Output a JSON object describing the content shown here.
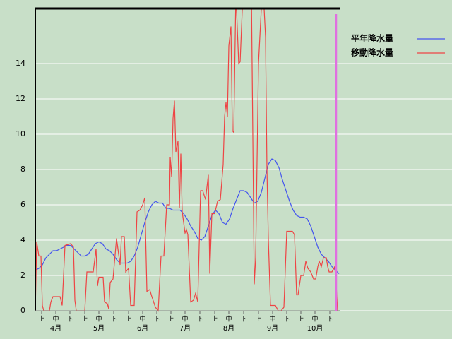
{
  "chart_data": {
    "type": "line",
    "xlim": [
      0,
      216
    ],
    "ylim": [
      0,
      17.12
    ],
    "yticks": [
      0,
      2,
      4,
      6,
      8,
      10,
      12,
      14
    ],
    "grid": true,
    "xticks": [
      {
        "value": 4.5,
        "label": "上"
      },
      {
        "value": 14.5,
        "label": "中"
      },
      {
        "value": 24.5,
        "label": "下"
      },
      {
        "value": 35,
        "label": "上"
      },
      {
        "value": 45,
        "label": "中"
      },
      {
        "value": 55.5,
        "label": "下"
      },
      {
        "value": 66,
        "label": "上"
      },
      {
        "value": 76,
        "label": "中"
      },
      {
        "value": 86,
        "label": "下"
      },
      {
        "value": 96,
        "label": "上"
      },
      {
        "value": 106,
        "label": "中"
      },
      {
        "value": 116.5,
        "label": "下"
      },
      {
        "value": 127,
        "label": "上"
      },
      {
        "value": 137,
        "label": "中"
      },
      {
        "value": 147.5,
        "label": "下"
      },
      {
        "value": 158,
        "label": "上"
      },
      {
        "value": 168,
        "label": "中"
      },
      {
        "value": 178,
        "label": "下"
      },
      {
        "value": 188,
        "label": "上"
      },
      {
        "value": 198,
        "label": "中"
      },
      {
        "value": 208.5,
        "label": "下"
      }
    ],
    "month_labels": [
      {
        "value": 14.5,
        "label": "4月"
      },
      {
        "value": 45,
        "label": "5月"
      },
      {
        "value": 76,
        "label": "6月"
      },
      {
        "value": 106,
        "label": "7月"
      },
      {
        "value": 137,
        "label": "8月"
      },
      {
        "value": 168,
        "label": "9月"
      },
      {
        "value": 198,
        "label": "10月"
      }
    ],
    "marker_x": 213,
    "marker_color": "#e070e0",
    "legend": "right",
    "series": [
      {
        "name": "平年降水量",
        "color": "#4455ee",
        "x": [
          0,
          2.5,
          5,
          7.5,
          10,
          12.5,
          15,
          17.5,
          20,
          22.5,
          25,
          27.5,
          30,
          32.5,
          35,
          37.5,
          40,
          42.5,
          45,
          47.5,
          50,
          52.5,
          55,
          57.5,
          60,
          62.5,
          65,
          67.5,
          70,
          72.5,
          75,
          77.5,
          80,
          82.5,
          85,
          87.5,
          90,
          92.5,
          95,
          97.5,
          100,
          102.5,
          105,
          107.5,
          110,
          112.5,
          115,
          117.5,
          120,
          122.5,
          125,
          127.5,
          130,
          132.5,
          135,
          137.5,
          140,
          142.5,
          145,
          147.5,
          150,
          152.5,
          155,
          157.5,
          160,
          162.5,
          165,
          167.5,
          170,
          172.5,
          175,
          177.5,
          180,
          182.5,
          185,
          187.5,
          190,
          192.5,
          195,
          197.5,
          200,
          202.5,
          205,
          207.5,
          210,
          212.5,
          215
        ],
        "values": [
          2.3,
          2.4,
          2.6,
          3.0,
          3.2,
          3.4,
          3.4,
          3.5,
          3.6,
          3.7,
          3.7,
          3.5,
          3.3,
          3.1,
          3.1,
          3.2,
          3.5,
          3.8,
          3.9,
          3.8,
          3.5,
          3.4,
          3.2,
          2.9,
          2.7,
          2.7,
          2.7,
          2.8,
          3.1,
          3.6,
          4.3,
          5.0,
          5.6,
          6.0,
          6.2,
          6.1,
          6.1,
          5.8,
          5.8,
          5.7,
          5.7,
          5.7,
          5.5,
          5.2,
          4.8,
          4.5,
          4.1,
          4.0,
          4.2,
          4.8,
          5.4,
          5.7,
          5.5,
          5.0,
          4.9,
          5.2,
          5.8,
          6.3,
          6.8,
          6.8,
          6.7,
          6.4,
          6.1,
          6.2,
          6.7,
          7.5,
          8.3,
          8.6,
          8.5,
          8.1,
          7.4,
          6.8,
          6.2,
          5.7,
          5.4,
          5.3,
          5.3,
          5.2,
          4.8,
          4.2,
          3.6,
          3.2,
          3.0,
          2.8,
          2.5,
          2.3,
          2.1
        ]
      },
      {
        "name": "移動降水量",
        "color": "#ee4444",
        "x": [
          0,
          1,
          2.5,
          4,
          5,
          6,
          10,
          11,
          12.5,
          17.5,
          19,
          21,
          25,
          27,
          28,
          29,
          35,
          36.5,
          41,
          43,
          44,
          45,
          48,
          49,
          51,
          52,
          53,
          55,
          57.5,
          60,
          61,
          63,
          64,
          66,
          67.5,
          70,
          72,
          74,
          76,
          77.5,
          79,
          81,
          82.5,
          85,
          87,
          89,
          91,
          93,
          95,
          95.5,
          96.5,
          97.5,
          98.5,
          99.5,
          101,
          102,
          103,
          104,
          106,
          107,
          108,
          110,
          112,
          113.5,
          115,
          117,
          118.5,
          120.5,
          122.5,
          123.5,
          125,
          127,
          129,
          131,
          133,
          134,
          135,
          136,
          137,
          138.5,
          139.5,
          140.5,
          142,
          144,
          145,
          147,
          153,
          155,
          156,
          158,
          160,
          162,
          163,
          164,
          165,
          166.5,
          170,
          172,
          174,
          176,
          178,
          182,
          183.5,
          185,
          186,
          188,
          190,
          191.5,
          193,
          195,
          197,
          198.5,
          200,
          201,
          202.5,
          204,
          206,
          207,
          208,
          210,
          212,
          213,
          214
        ],
        "values": [
          0,
          3.9,
          3.1,
          3.1,
          0.3,
          0,
          0,
          0.5,
          0.8,
          0.8,
          0.3,
          3.7,
          3.8,
          3.6,
          0.6,
          0,
          0,
          2.2,
          2.2,
          3.5,
          1.4,
          1.9,
          1.9,
          0.5,
          0.4,
          0.1,
          1.6,
          1.8,
          4.1,
          2.6,
          4.2,
          4.2,
          2.2,
          2.4,
          0.3,
          0.3,
          5.6,
          5.7,
          6.0,
          6.4,
          1.1,
          1.2,
          0.8,
          0.2,
          0,
          3.1,
          3.1,
          6.0,
          6.0,
          8.7,
          7.6,
          10.9,
          11.9,
          9.0,
          9.6,
          5.8,
          8.9,
          5.6,
          4.4,
          4.6,
          4.3,
          0.5,
          0.6,
          1.0,
          0.5,
          6.8,
          6.8,
          6.3,
          7.7,
          2.1,
          5.5,
          5.5,
          6.2,
          6.3,
          8.3,
          11.0,
          11.8,
          11.0,
          15.0,
          16.1,
          10.2,
          10.1,
          18,
          14.0,
          14.1,
          18,
          18,
          1.5,
          3.0,
          14.0,
          17.1,
          17.1,
          15.5,
          8.0,
          4.0,
          0.3,
          0.3,
          0,
          0,
          0.2,
          4.5,
          4.5,
          4.3,
          0.9,
          0.9,
          2.0,
          2.0,
          2.8,
          2.4,
          2.2,
          1.8,
          1.8,
          2.5,
          2.8,
          2.5,
          3.0,
          3.0,
          2.5,
          2.2,
          2.2,
          2.5,
          1.5,
          0
        ]
      }
    ]
  }
}
